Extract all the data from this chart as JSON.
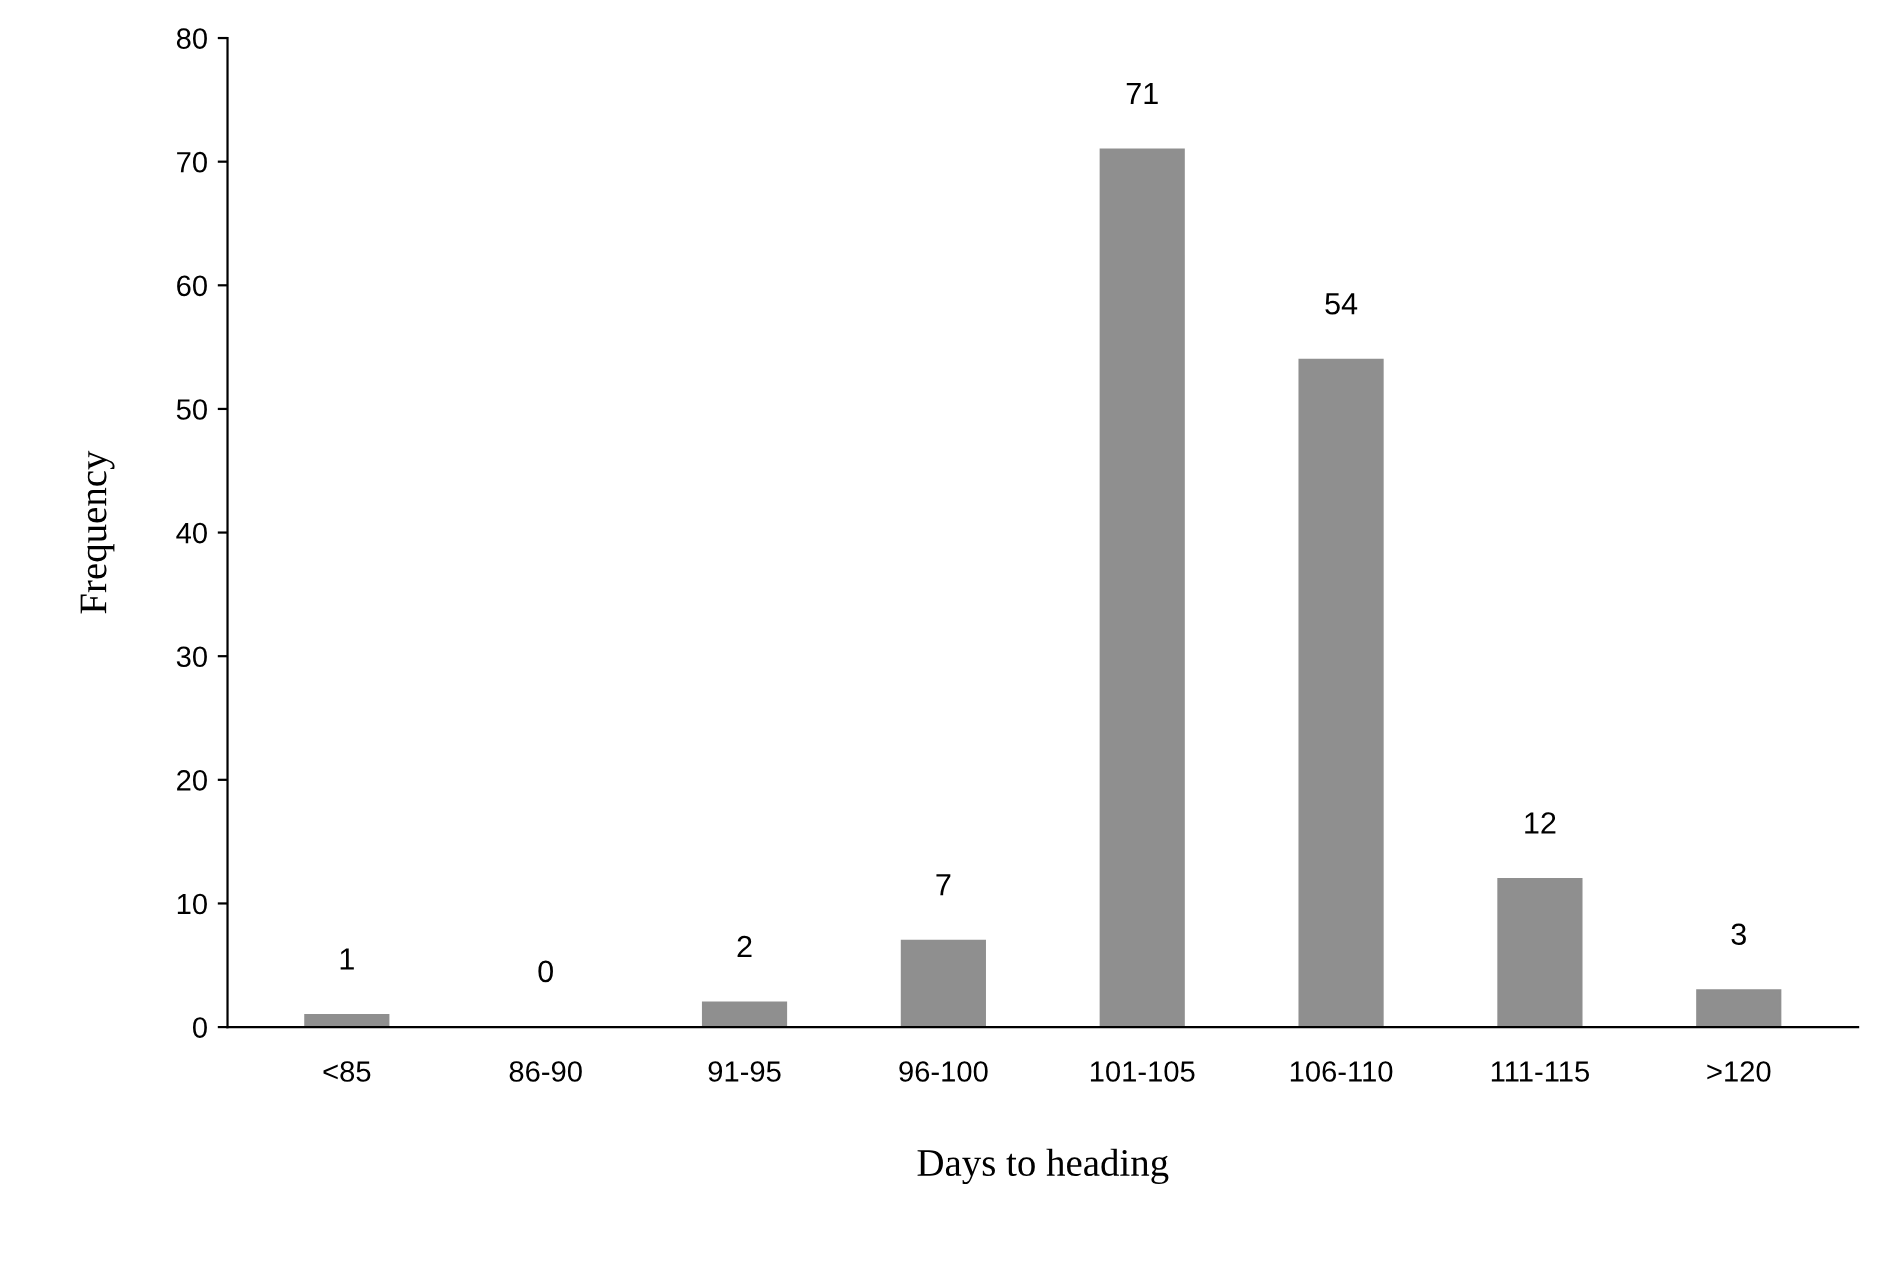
{
  "chart_data": {
    "type": "bar",
    "xlabel": "Days to heading",
    "ylabel": "Frequency",
    "categories": [
      "<85",
      "86-90",
      "91-95",
      "96-100",
      "101-105",
      "106-110",
      "111-115",
      ">120"
    ],
    "values": [
      1,
      0,
      2,
      7,
      71,
      54,
      12,
      3
    ],
    "color": "#8f8f8f",
    "ylim": [
      0,
      80
    ],
    "yticks": [
      0,
      10,
      20,
      30,
      40,
      50,
      60,
      70,
      80
    ],
    "grid": false,
    "data_labels": true
  }
}
